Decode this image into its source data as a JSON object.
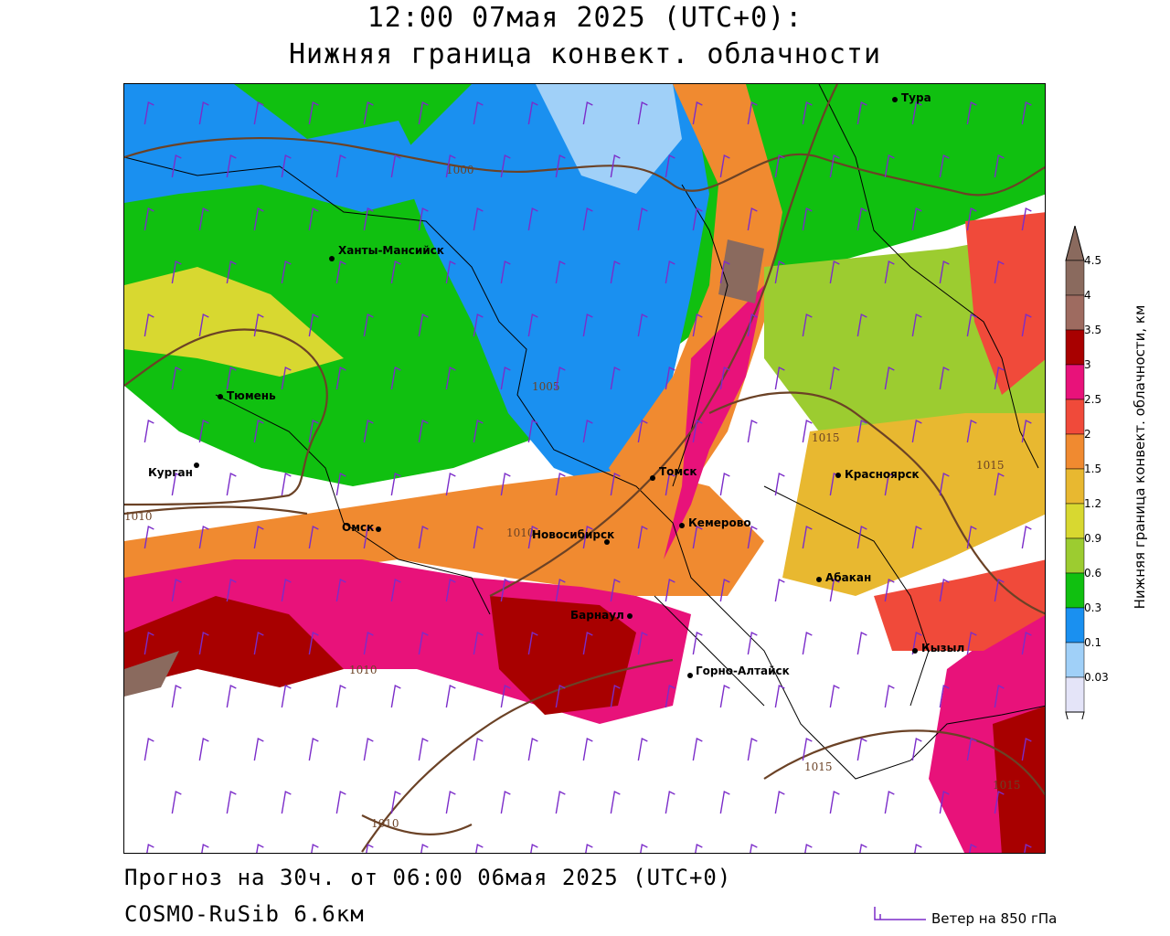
{
  "title": {
    "line1": "12:00 07мая 2025 (UTC+0):",
    "line2": "Нижняя граница конвект. облачности"
  },
  "footer": {
    "forecast": "Прогноз на 30ч. от 06:00 06мая 2025 (UTC+0)",
    "model": "COSMO-RuSib 6.6км",
    "wind_legend": "Ветер на 850 гПа"
  },
  "colorbar": {
    "title": "Нижняя граница конвект. облачности, км",
    "levels": [
      "4.5",
      "4",
      "3.5",
      "3",
      "2.5",
      "2",
      "1.5",
      "1.2",
      "0.9",
      "0.6",
      "0.3",
      "0.1",
      "0.03"
    ],
    "colors": [
      "#8a6a5e",
      "#9e6b60",
      "#a80000",
      "#e8127a",
      "#f04a3a",
      "#f08a30",
      "#e8b830",
      "#d8d830",
      "#9ccc30",
      "#10c010",
      "#1a90f0",
      "#a0d0f8",
      "#e4e4f8"
    ]
  },
  "cities": [
    {
      "name": "Тура"
    },
    {
      "name": "Ханты-Мансийск"
    },
    {
      "name": "Тюмень"
    },
    {
      "name": "Курган"
    },
    {
      "name": "Омск"
    },
    {
      "name": "Новосибирск"
    },
    {
      "name": "Томск"
    },
    {
      "name": "Кемерово"
    },
    {
      "name": "Красноярск"
    },
    {
      "name": "Абакан"
    },
    {
      "name": "Барнаул"
    },
    {
      "name": "Горно-Алтайск"
    },
    {
      "name": "Кызыл"
    }
  ],
  "isobars": [
    "1000",
    "1005",
    "1010",
    "1015"
  ]
}
